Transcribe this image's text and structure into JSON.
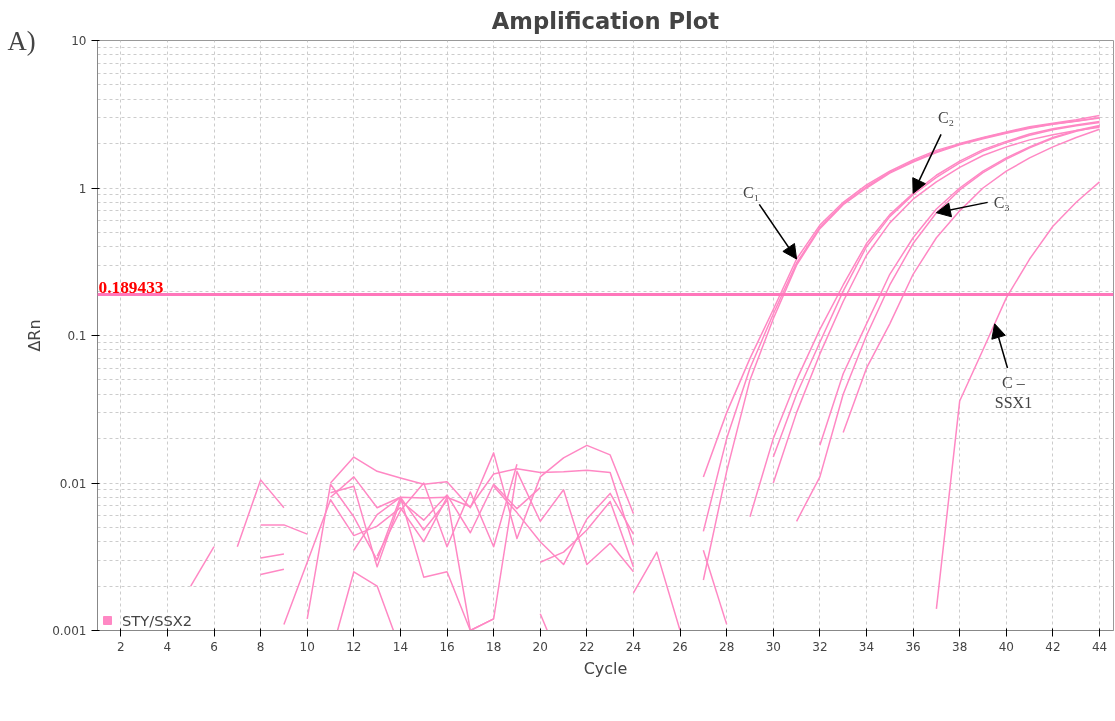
{
  "chart_data": {
    "type": "line",
    "title": "Amplification Plot",
    "xlabel": "Cycle",
    "ylabel": "ΔRn",
    "xlim": [
      1,
      44.6
    ],
    "xticks": [
      2,
      4,
      6,
      8,
      10,
      12,
      14,
      16,
      18,
      20,
      22,
      24,
      26,
      28,
      30,
      32,
      34,
      36,
      38,
      40,
      42,
      44
    ],
    "ylim": [
      0.001,
      10
    ],
    "yticks": [
      0.001,
      0.01,
      0.1,
      1,
      10
    ],
    "log": true,
    "grid": true,
    "legend": "bottom left",
    "marker": "none",
    "line_style": "solid",
    "ref_lines": [
      {
        "axis": "y",
        "value": 0.189433,
        "label": "0.189433",
        "color": "#ff77bb"
      }
    ],
    "annotations": [
      "A)",
      {
        "text": "C₁",
        "x": 31,
        "y": 0.33
      },
      {
        "text": "C₂",
        "x": 36,
        "y": 0.92
      },
      {
        "text": "C₃",
        "x": 37,
        "y": 0.68
      },
      {
        "text": "C –\nSSX1",
        "x": 39.5,
        "y": 0.12
      }
    ],
    "series": [
      {
        "name": "STY/SSX2",
        "color": "#ff88c4",
        "x": [
          27,
          28,
          29,
          30,
          31,
          32,
          33,
          34,
          35,
          36,
          37,
          38,
          39,
          40,
          41,
          42,
          43,
          44
        ],
        "values": [
          0.011,
          0.03,
          0.07,
          0.15,
          0.33,
          0.56,
          0.8,
          1.05,
          1.3,
          1.55,
          1.8,
          2.0,
          2.2,
          2.4,
          2.6,
          2.75,
          2.9,
          3.1
        ]
      },
      {
        "color": "#ff88c4",
        "x": [
          27,
          28,
          29,
          30,
          31,
          32,
          33,
          34,
          35,
          36,
          37,
          38,
          39,
          40,
          41,
          42,
          43,
          44
        ],
        "values": [
          0.0047,
          0.02,
          0.06,
          0.14,
          0.31,
          0.54,
          0.78,
          1.02,
          1.28,
          1.52,
          1.76,
          1.98,
          2.18,
          2.38,
          2.56,
          2.72,
          2.85,
          3.0
        ]
      },
      {
        "color": "#ff88c4",
        "x": [
          27,
          28,
          29,
          30,
          31,
          32,
          33,
          34,
          35,
          36,
          37,
          38,
          39,
          40,
          41,
          42,
          43,
          44
        ],
        "values": [
          0.0022,
          0.012,
          0.05,
          0.13,
          0.3,
          0.53,
          0.77,
          1.0,
          1.26,
          1.5,
          1.74,
          1.96,
          2.16,
          2.35,
          2.54,
          2.7,
          2.83,
          2.98
        ]
      },
      {
        "color": "#ff88c4",
        "x": [
          29,
          30,
          31,
          32,
          33,
          34,
          35,
          36,
          37,
          38,
          39,
          40,
          41,
          42,
          43,
          44
        ],
        "values": [
          0.0059,
          0.02,
          0.05,
          0.11,
          0.22,
          0.42,
          0.66,
          0.92,
          1.22,
          1.52,
          1.82,
          2.07,
          2.32,
          2.52,
          2.67,
          2.82
        ]
      },
      {
        "color": "#ff88c4",
        "x": [
          30,
          31,
          32,
          33,
          34,
          35,
          36,
          37,
          38,
          39,
          40,
          41,
          42,
          43,
          44
        ],
        "values": [
          0.015,
          0.04,
          0.09,
          0.2,
          0.4,
          0.64,
          0.9,
          1.18,
          1.48,
          1.78,
          2.03,
          2.28,
          2.48,
          2.64,
          2.78
        ]
      },
      {
        "color": "#ff88c4",
        "x": [
          30,
          31,
          32,
          33,
          34,
          35,
          36,
          37,
          38,
          39,
          40,
          41,
          42,
          43,
          44
        ],
        "values": [
          0.01,
          0.03,
          0.075,
          0.17,
          0.35,
          0.58,
          0.84,
          1.1,
          1.38,
          1.66,
          1.9,
          2.12,
          2.3,
          2.45,
          2.58
        ]
      },
      {
        "color": "#ff88c4",
        "x": [
          32,
          33,
          34,
          35,
          36,
          37,
          38,
          39,
          40,
          41,
          42,
          43,
          44
        ],
        "values": [
          0.018,
          0.055,
          0.12,
          0.26,
          0.46,
          0.72,
          1.0,
          1.3,
          1.6,
          1.9,
          2.2,
          2.45,
          2.65
        ]
      },
      {
        "color": "#ff88c4",
        "x": [
          31,
          32,
          33,
          34,
          35,
          36,
          37,
          38,
          39,
          40,
          41,
          42,
          43,
          44
        ],
        "values": [
          0.0055,
          0.011,
          0.04,
          0.1,
          0.22,
          0.42,
          0.68,
          0.97,
          1.27,
          1.57,
          1.87,
          2.17,
          2.42,
          2.62
        ]
      },
      {
        "color": "#ff88c4",
        "x": [
          33,
          34,
          35,
          36,
          37,
          38,
          39,
          40,
          41,
          42,
          43,
          44
        ],
        "values": [
          0.022,
          0.06,
          0.12,
          0.26,
          0.46,
          0.7,
          1.0,
          1.3,
          1.6,
          1.9,
          2.2,
          2.5
        ]
      },
      {
        "color": "#ff88c4",
        "x": [
          37,
          38,
          39,
          40,
          41,
          42,
          43,
          44
        ],
        "values": [
          0.0014,
          0.036,
          0.08,
          0.18,
          0.33,
          0.55,
          0.8,
          1.1
        ]
      },
      {
        "color": "#ff88c4",
        "x": [
          5,
          6
        ],
        "values": [
          0.002,
          0.0037
        ]
      },
      {
        "color": "#ff88c4",
        "x": [
          7,
          8,
          9
        ],
        "values": [
          0.0037,
          0.0105,
          0.0068
        ]
      },
      {
        "color": "#ff88c4",
        "x": [
          8,
          9,
          10
        ],
        "values": [
          0.0052,
          0.0052,
          0.0045
        ]
      },
      {
        "color": "#ff88c4",
        "x": [
          8,
          9
        ],
        "values": [
          0.0031,
          0.0033
        ]
      },
      {
        "color": "#ff88c4",
        "x": [
          8,
          9
        ],
        "values": [
          0.0024,
          0.0026
        ]
      },
      {
        "color": "#ff88c4",
        "x": [
          11,
          12,
          13,
          14,
          15,
          16,
          17,
          18,
          19,
          20,
          21,
          22,
          23,
          24
        ],
        "values": [
          0.01,
          0.015,
          0.012,
          0.0108,
          0.0098,
          0.0102,
          0.0068,
          0.016,
          0.0042,
          0.011,
          0.0148,
          0.018,
          0.0155,
          0.0062
        ]
      },
      {
        "color": "#ff88c4",
        "x": [
          11,
          12,
          13,
          14,
          15,
          16,
          17,
          18,
          19,
          20,
          21,
          22,
          23,
          24
        ],
        "values": [
          0.008,
          0.011,
          0.0068,
          0.008,
          0.0079,
          0.008,
          0.0069,
          0.0115,
          0.0125,
          0.0118,
          0.0119,
          0.0122,
          0.0118,
          0.0038
        ]
      },
      {
        "color": "#ff88c4",
        "x": [
          11,
          12,
          13,
          14,
          15,
          16,
          17,
          18,
          19,
          20
        ],
        "values": [
          0.0086,
          0.0095,
          0.0027,
          0.0076,
          0.0056,
          0.0083,
          0.0046,
          0.0098,
          0.0067,
          0.0093
        ]
      },
      {
        "color": "#ff88c4",
        "x": [
          9,
          10,
          11,
          12,
          13,
          14,
          15,
          16
        ],
        "values": [
          0.0011,
          0.0029,
          0.0077,
          0.0044,
          0.0051,
          0.0068,
          0.004,
          0.008
        ]
      },
      {
        "color": "#ff88c4",
        "x": [
          10,
          11,
          12,
          13,
          14,
          15,
          16,
          17,
          18
        ],
        "values": [
          0.0012,
          0.0098,
          0.0059,
          0.003,
          0.008,
          0.0023,
          0.0025,
          0.001,
          0.0012
        ]
      },
      {
        "color": "#ff88c4",
        "x": [
          11.3,
          12,
          13,
          13.7
        ],
        "values": [
          0.001,
          0.0025,
          0.002,
          0.001
        ]
      },
      {
        "color": "#ff88c4",
        "x": [
          12,
          13,
          14,
          15,
          16
        ],
        "values": [
          0.0035,
          0.0061,
          0.008,
          0.0048,
          0.0076
        ]
      },
      {
        "color": "#ff88c4",
        "x": [
          13,
          14,
          15,
          16,
          17,
          18,
          19
        ],
        "values": [
          0.0032,
          0.0065,
          0.01,
          0.0037,
          0.0087,
          0.0037,
          0.0134
        ]
      },
      {
        "color": "#ff88c4",
        "x": [
          16,
          17,
          18,
          19,
          20,
          21,
          22,
          23,
          24
        ],
        "values": [
          0.008,
          0.001,
          0.0012,
          0.012,
          0.0055,
          0.009,
          0.0028,
          0.0039,
          0.0025
        ]
      },
      {
        "color": "#ff88c4",
        "x": [
          18,
          19,
          20,
          21,
          22,
          23,
          24
        ],
        "values": [
          0.0095,
          0.0063,
          0.004,
          0.0028,
          0.0057,
          0.0085,
          0.0045
        ]
      },
      {
        "color": "#ff88c4",
        "x": [
          20,
          21,
          22,
          23,
          24
        ],
        "values": [
          0.0029,
          0.0034,
          0.0048,
          0.0075,
          0.0027
        ]
      },
      {
        "color": "#ff88c4",
        "x": [
          20,
          20.3
        ],
        "values": [
          0.0013,
          0.001
        ]
      },
      {
        "color": "#ff88c4",
        "x": [
          24,
          25,
          26
        ],
        "values": [
          0.0018,
          0.0034,
          0.001
        ]
      },
      {
        "color": "#ff88c4",
        "x": [
          27,
          28
        ],
        "values": [
          0.0035,
          0.0011
        ]
      }
    ]
  }
}
